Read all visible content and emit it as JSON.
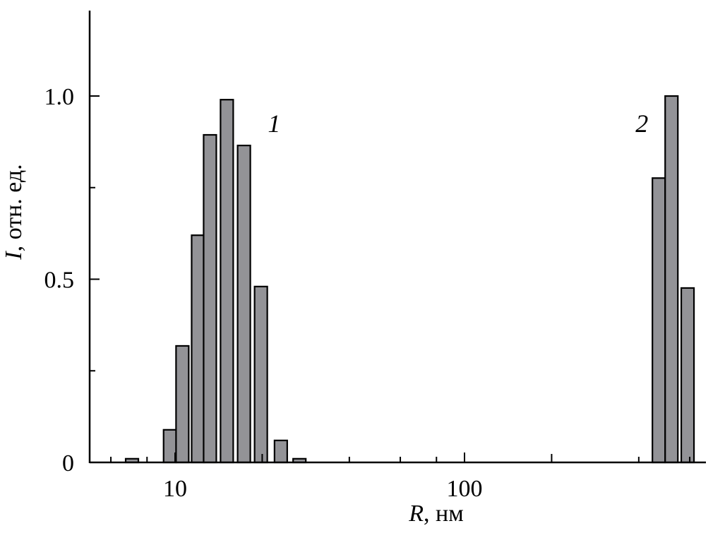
{
  "chart_data": {
    "type": "bar",
    "title": "",
    "xlabel": {
      "var": "R",
      "unit": ", нм"
    },
    "ylabel": {
      "var": "I",
      "unit": ", отн. ед."
    },
    "x_scale": "log",
    "xlim": [
      5.2,
      660
    ],
    "ylim": [
      0,
      1.25
    ],
    "x_tick_labels": [
      {
        "value": 10,
        "label": "10"
      },
      {
        "value": 100,
        "label": "100"
      }
    ],
    "x_minor_ticks": [
      6,
      8,
      20,
      40,
      60,
      80,
      200,
      400,
      600
    ],
    "y_tick_labels": [
      {
        "value": 0,
        "label": "0"
      },
      {
        "value": 0.5,
        "label": "0.5"
      },
      {
        "value": 1.0,
        "label": "1.0"
      }
    ],
    "y_minor_ticks": [
      0.25,
      0.75
    ],
    "grid": false,
    "bar_color": "#939397",
    "series": [
      {
        "name": "1",
        "x": [
          7.1,
          9.6,
          10.6,
          12.0,
          13.2,
          15.1,
          17.3,
          19.8,
          23.2,
          26.9
        ],
        "values": [
          0.01,
          0.089,
          0.318,
          0.62,
          0.894,
          0.99,
          0.865,
          0.48,
          0.06,
          0.01
        ]
      },
      {
        "name": "2",
        "x": [
          469,
          519,
          590
        ],
        "values": [
          0.776,
          1.0,
          0.476
        ]
      }
    ],
    "annotations": [
      {
        "text": "1",
        "x": 22,
        "y": 0.96
      },
      {
        "text": "2",
        "x": 410,
        "y": 0.96
      }
    ]
  }
}
